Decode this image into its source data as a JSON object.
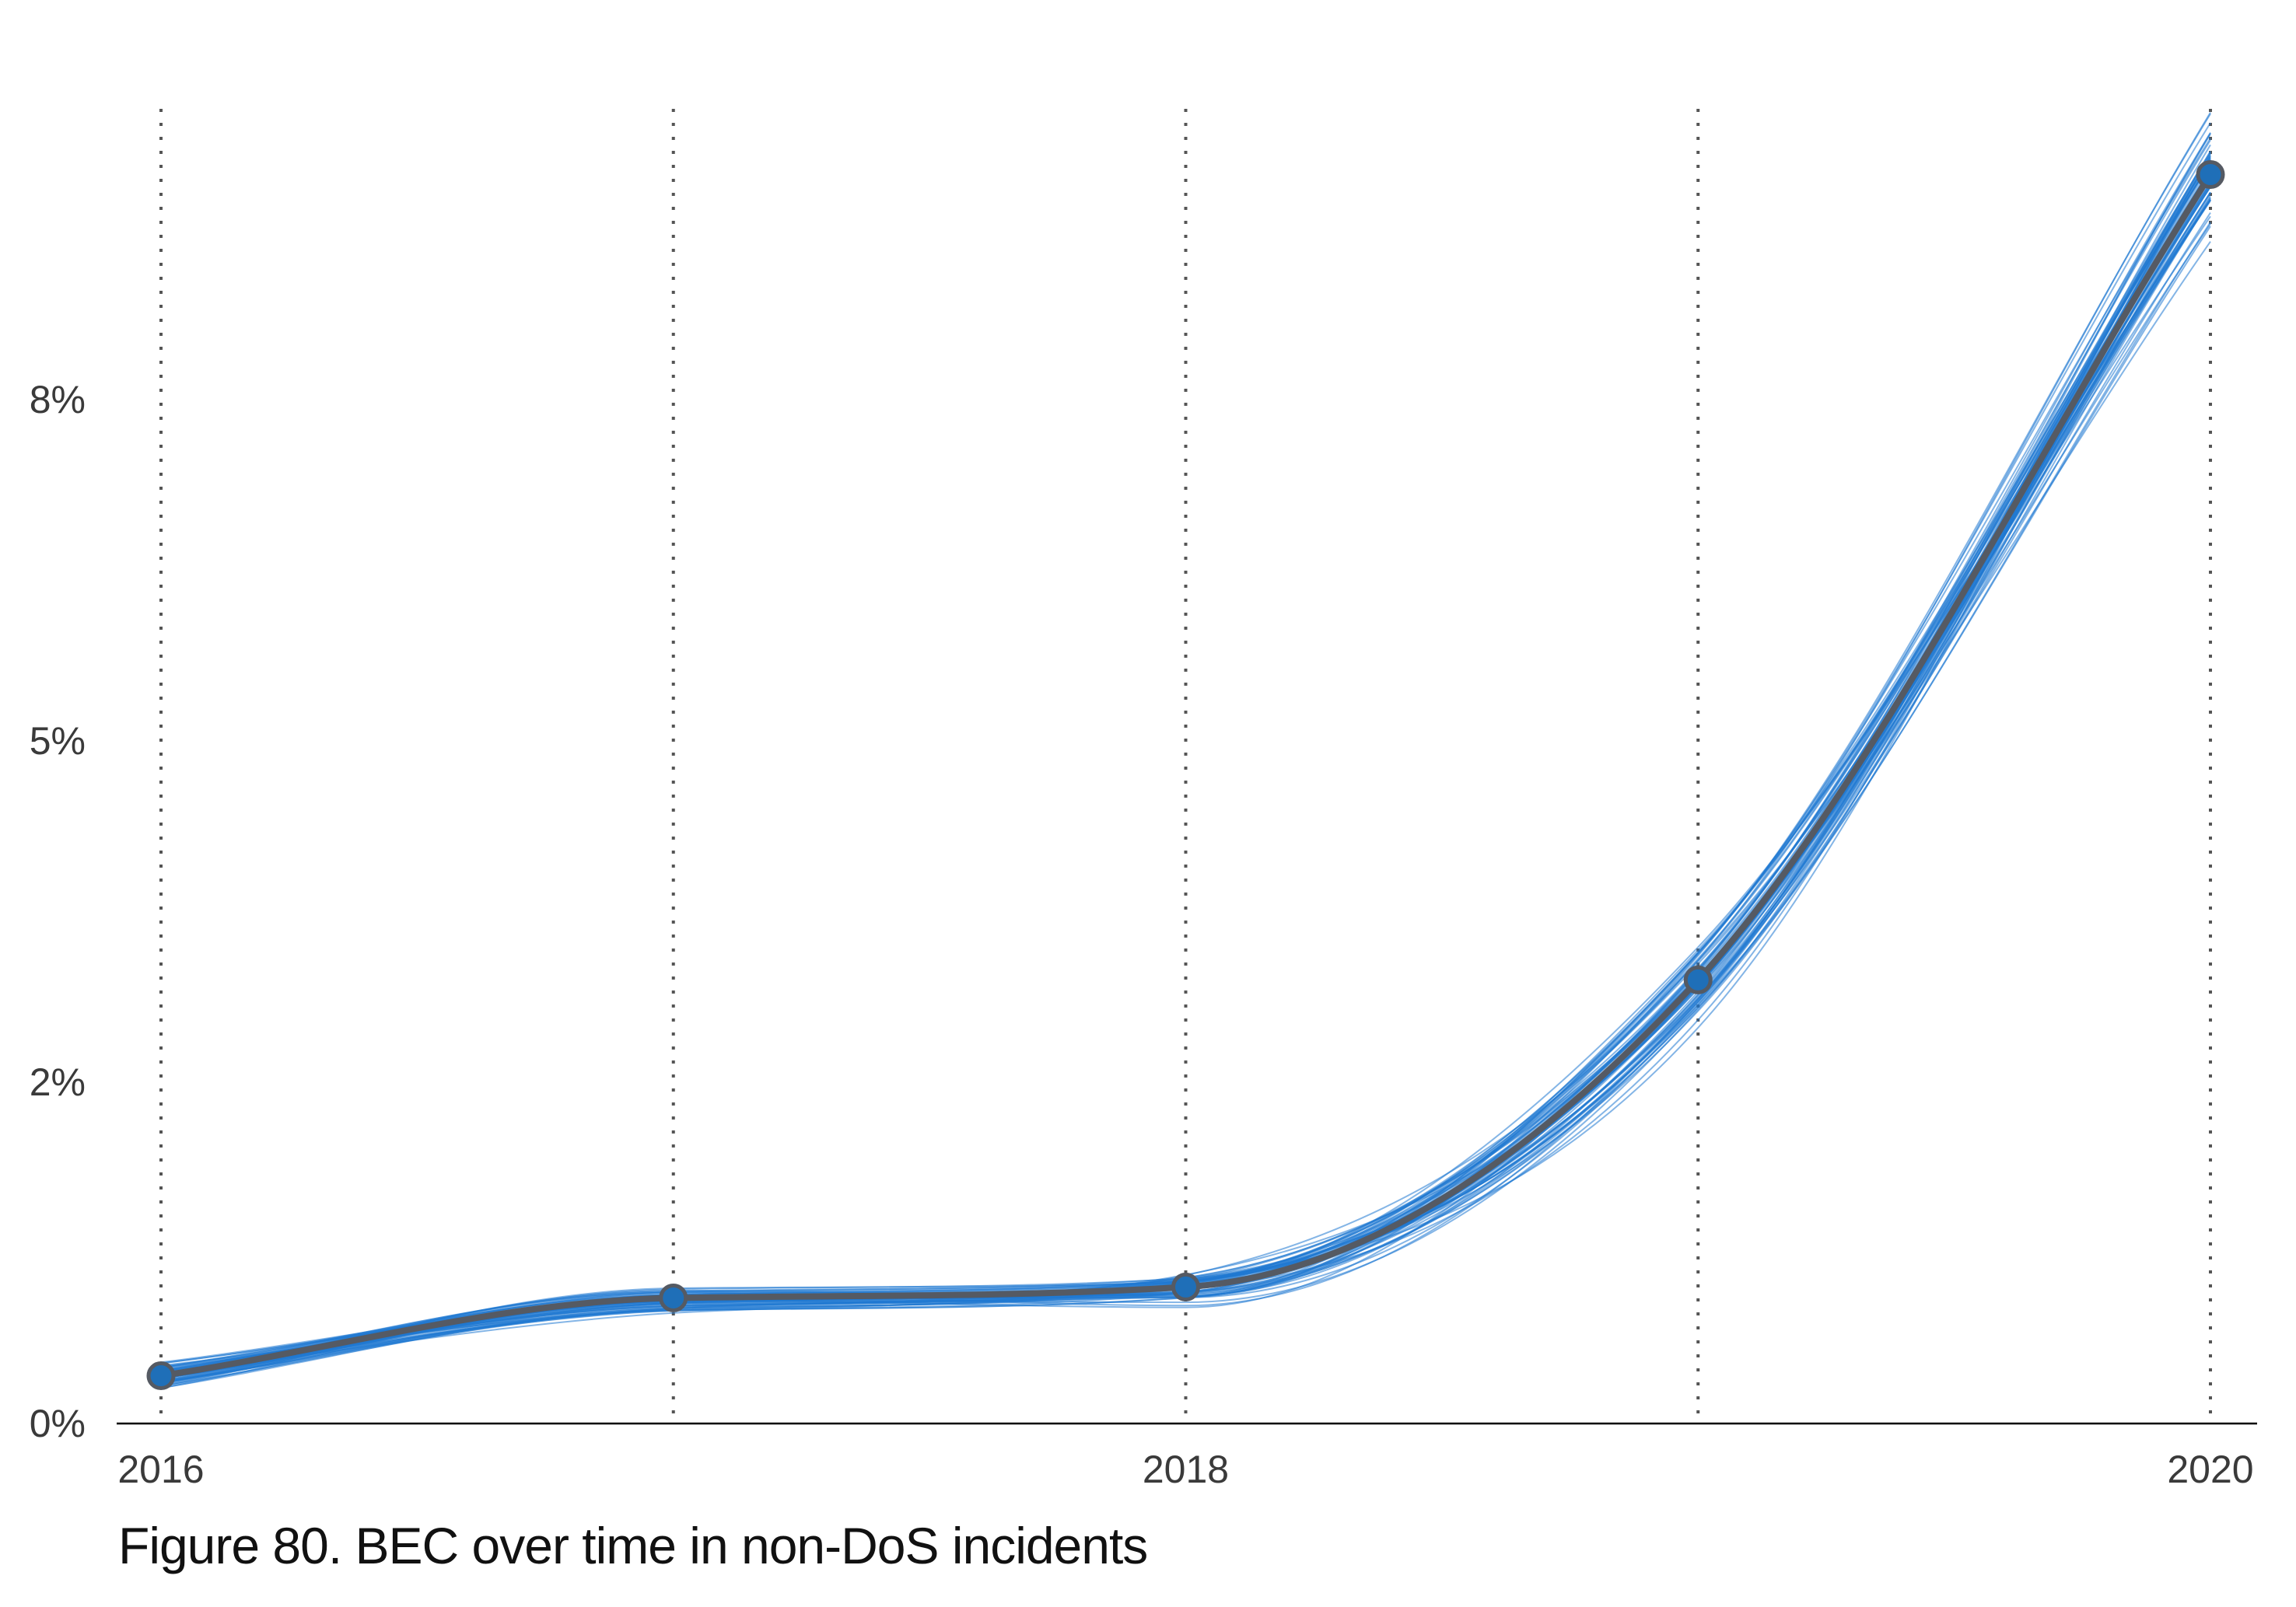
{
  "caption": "Figure 80. BEC over time in non-DoS incidents",
  "colors": {
    "simulation": "#1f78d1",
    "median": "#555a63",
    "point_fill": "#1f6fb8",
    "grid": "#555555",
    "axis": "#000000",
    "text": "#3a3a3a"
  },
  "chart_data": {
    "type": "line",
    "title": "Figure 80. BEC over time in non-DoS incidents",
    "xlabel": "",
    "ylabel": "",
    "x": [
      2016,
      2017,
      2018,
      2019,
      2020
    ],
    "x_tick_values": [
      2016,
      2018,
      2020
    ],
    "x_tick_labels": [
      "2016",
      "2018",
      "2020"
    ],
    "xlim": [
      2016,
      2020
    ],
    "y_tick_values": [
      0,
      2.5,
      5,
      7.5
    ],
    "y_tick_labels": [
      "0%",
      "2%",
      "5%",
      "8%"
    ],
    "ylim": [
      0,
      9.7
    ],
    "grid": "vertical dotted lines at each year",
    "series": [
      {
        "values": [
          0.35,
          0.92,
          1.0,
          3.25,
          9.15
        ]
      }
    ],
    "uncertainty": "many thin blue simulated lines around the median line; spread widens toward 2020 (about 8.5% to 9.7%)"
  }
}
